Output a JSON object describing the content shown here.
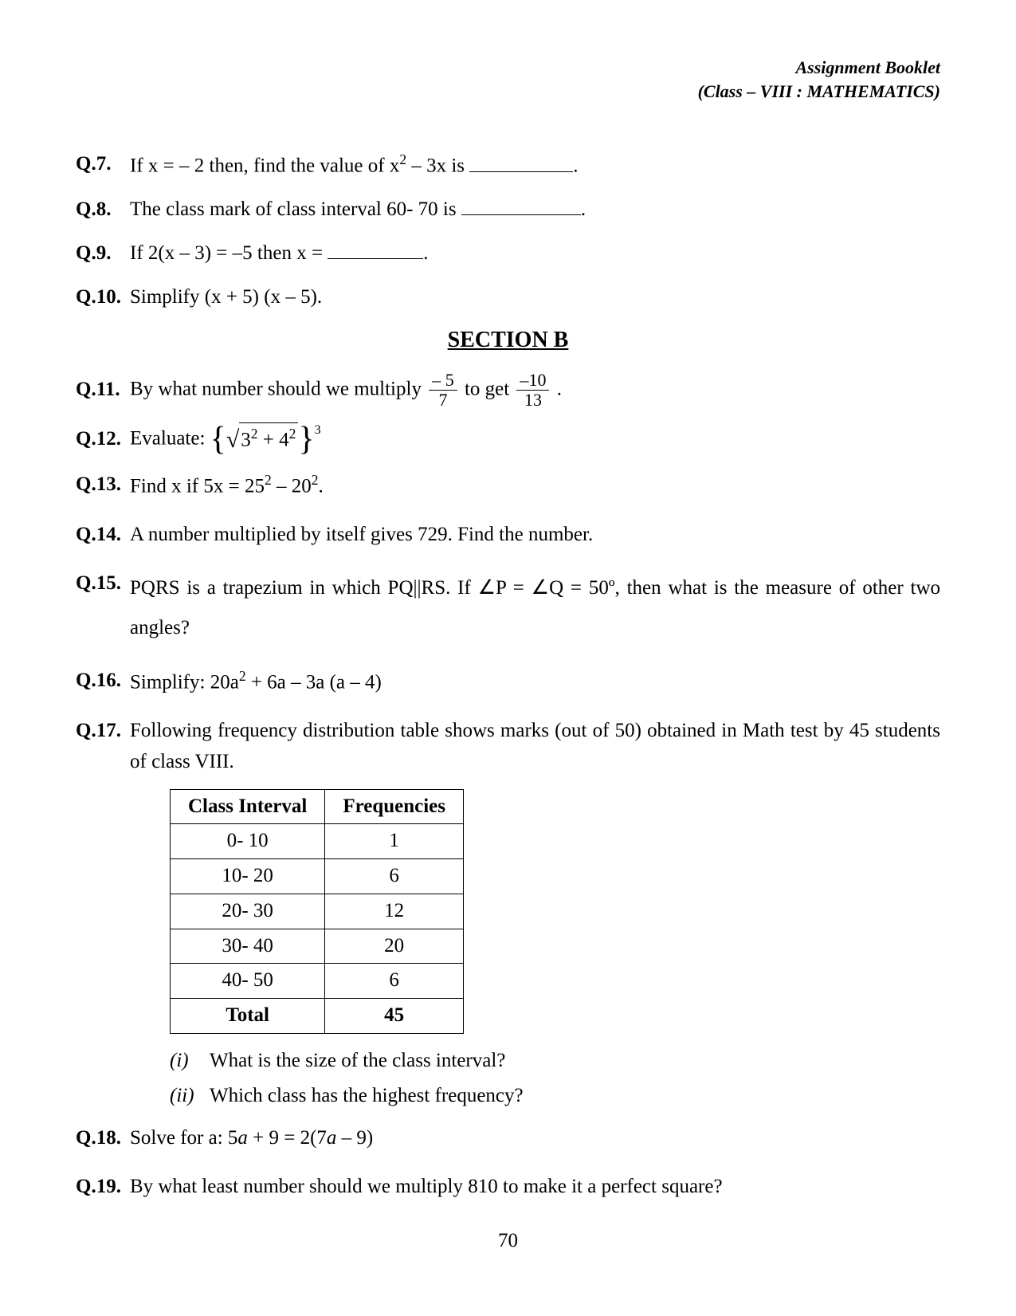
{
  "header": {
    "line1": "Assignment Booklet",
    "line2": "(Class – VIII : MATHEMATICS)"
  },
  "questions": {
    "q7": {
      "num": "Q.7.",
      "pre": "If x = – 2 then, find the value of x",
      "mid": " – 3x is ",
      "post": "."
    },
    "q8": {
      "num": "Q.8.",
      "pre": "The class mark of class interval 60- 70 is ",
      "post": "."
    },
    "q9": {
      "num": "Q.9.",
      "pre": "If 2(x – 3) = –5 then x = ",
      "post": "."
    },
    "q10": {
      "num": "Q.10.",
      "text": "Simplify (x + 5) (x – 5)."
    },
    "q11": {
      "num": "Q.11.",
      "pre": "By what number should we multiply ",
      "mid": " to get ",
      "post": " .",
      "frac1": {
        "num": "– 5",
        "den": "7"
      },
      "frac2": {
        "num": "–10",
        "den": "13"
      }
    },
    "q12": {
      "num": "Q.12.",
      "pre": "Evaluate: ",
      "radicand_a": "3",
      "radicand_plus": " + 4",
      "exp": "3"
    },
    "q13": {
      "num": "Q.13.",
      "pre": "Find x if 5x = 25",
      "mid": " – 20",
      "post": "."
    },
    "q14": {
      "num": "Q.14.",
      "text": "A number multiplied by itself gives 729. Find the number."
    },
    "q15": {
      "num": "Q.15.",
      "text": "PQRS is a trapezium in which PQ||RS. If ∠P = ∠Q = 50º, then what is the measure of other two angles?"
    },
    "q16": {
      "num": "Q.16.",
      "pre": "Simplify: 20a",
      "mid": " + 6a – 3a (a – 4)"
    },
    "q17": {
      "num": "Q.17.",
      "text": "Following frequency distribution table shows marks (out of 50) obtained in Math test by 45 students of class VIII.",
      "sub_i": {
        "n": "(i)",
        "t": "What is the size of the class interval?"
      },
      "sub_ii": {
        "n": "(ii)",
        "t": "Which class has the highest frequency?"
      }
    },
    "q18": {
      "num": "Q.18.",
      "pre": "Solve for a: 5",
      "a1": "a",
      "mid": " + 9 = 2(7",
      "a2": "a",
      "post": " – 9)"
    },
    "q19": {
      "num": "Q.19.",
      "text": "By what least number should we multiply 810 to make it a perfect square?"
    }
  },
  "section_b": "SECTION B",
  "table": {
    "headers": [
      "Class Interval",
      "Frequencies"
    ],
    "rows": [
      [
        "0- 10",
        "1"
      ],
      [
        "10- 20",
        "6"
      ],
      [
        "20- 30",
        "12"
      ],
      [
        "30- 40",
        "20"
      ],
      [
        "40- 50",
        "6"
      ]
    ],
    "total": [
      "Total",
      "45"
    ]
  },
  "page_number": "70"
}
